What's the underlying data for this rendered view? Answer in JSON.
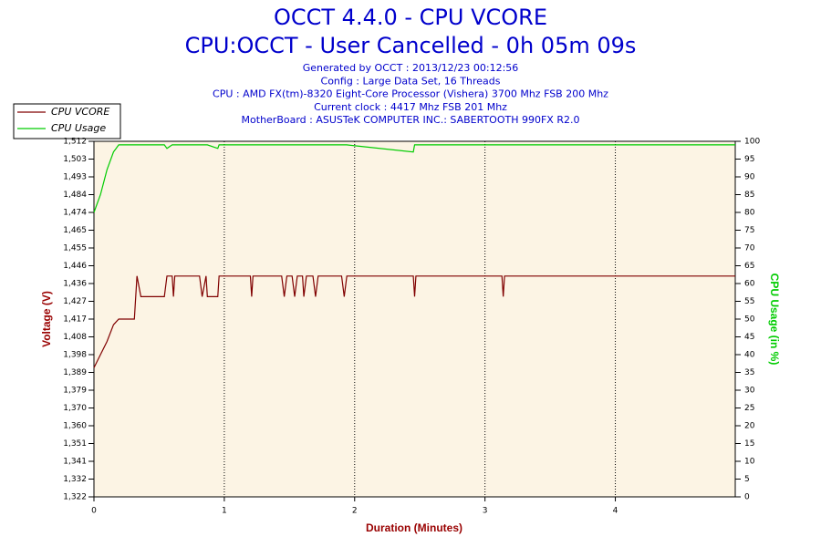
{
  "chart_data": {
    "type": "line",
    "title": "OCCT 4.4.0 - CPU VCORE",
    "subtitle": "CPU:OCCT - User Cancelled - 0h 05m 09s",
    "info_lines": [
      "Generated by OCCT : 2013/12/23 00:12:56",
      "Config : Large Data Set, 16 Threads",
      "CPU : AMD FX(tm)-8320 Eight-Core Processor (Vishera) 3700 Mhz FSB 200 Mhz",
      "Current clock : 4417 Mhz FSB 201 Mhz",
      "MotherBoard : ASUSTeK COMPUTER INC.: SABERTOOTH 990FX R2.0"
    ],
    "x_label": "Duration (Minutes)",
    "y_label": "Voltage (V)",
    "y2_label": "CPU Usage (in %)",
    "grid": "x",
    "legend": "top-left",
    "xlim": [
      0,
      4.92
    ],
    "xticks": [
      0,
      1,
      2,
      3,
      4
    ],
    "ylim": [
      1.322,
      1.512
    ],
    "yticks": [
      {
        "value": 1.322,
        "label": "1,322"
      },
      {
        "value": 1.3315,
        "label": "1,332"
      },
      {
        "value": 1.341,
        "label": "1,341"
      },
      {
        "value": 1.3505,
        "label": "1,351"
      },
      {
        "value": 1.36,
        "label": "1,360"
      },
      {
        "value": 1.3695,
        "label": "1,370"
      },
      {
        "value": 1.379,
        "label": "1,379"
      },
      {
        "value": 1.3885,
        "label": "1,389"
      },
      {
        "value": 1.398,
        "label": "1,398"
      },
      {
        "value": 1.4075,
        "label": "1,408"
      },
      {
        "value": 1.417,
        "label": "1,417"
      },
      {
        "value": 1.4265,
        "label": "1,427"
      },
      {
        "value": 1.436,
        "label": "1,436"
      },
      {
        "value": 1.4455,
        "label": "1,446"
      },
      {
        "value": 1.455,
        "label": "1,455"
      },
      {
        "value": 1.4645,
        "label": "1,465"
      },
      {
        "value": 1.474,
        "label": "1,474"
      },
      {
        "value": 1.4835,
        "label": "1,484"
      },
      {
        "value": 1.493,
        "label": "1,493"
      },
      {
        "value": 1.5025,
        "label": "1,503"
      },
      {
        "value": 1.512,
        "label": "1,512"
      }
    ],
    "y2lim": [
      0,
      100
    ],
    "y2ticks": [
      0,
      5,
      10,
      15,
      20,
      25,
      30,
      35,
      40,
      45,
      50,
      55,
      60,
      65,
      70,
      75,
      80,
      85,
      90,
      95,
      100
    ],
    "x": [
      0,
      0.05,
      0.1,
      0.15,
      0.19,
      0.31,
      0.33,
      0.36,
      0.54,
      0.56,
      0.6,
      0.61,
      0.62,
      0.81,
      0.83,
      0.86,
      0.87,
      0.95,
      0.96,
      1.2,
      1.21,
      1.22,
      1.44,
      1.46,
      1.48,
      1.52,
      1.54,
      1.56,
      1.6,
      1.61,
      1.63,
      1.68,
      1.7,
      1.72,
      1.9,
      1.92,
      1.94,
      2.45,
      2.46,
      2.47,
      3.13,
      3.14,
      3.15,
      4.92
    ],
    "series": [
      {
        "name": "CPU VCORE",
        "color": "#800000",
        "values": [
          1.391,
          1.398,
          1.405,
          1.414,
          1.417,
          1.417,
          1.44,
          1.429,
          1.429,
          1.44,
          1.44,
          1.429,
          1.44,
          1.44,
          1.429,
          1.44,
          1.429,
          1.429,
          1.44,
          1.44,
          1.429,
          1.44,
          1.44,
          1.429,
          1.44,
          1.44,
          1.429,
          1.44,
          1.44,
          1.429,
          1.44,
          1.44,
          1.429,
          1.44,
          1.44,
          1.429,
          1.44,
          1.44,
          1.429,
          1.44,
          1.44,
          1.429,
          1.44,
          1.44
        ]
      },
      {
        "name": "CPU Usage",
        "color": "#00cc00",
        "axis": "y2",
        "values": [
          80,
          85,
          92,
          97,
          99,
          99,
          99,
          99,
          99,
          98,
          99,
          99,
          99,
          99,
          99,
          99,
          99,
          98,
          99,
          99,
          99,
          99,
          99,
          99,
          99,
          99,
          99,
          99,
          99,
          99,
          99,
          99,
          99,
          99,
          99,
          99,
          99,
          97,
          99,
          99,
          99,
          99,
          99,
          99
        ]
      }
    ]
  }
}
